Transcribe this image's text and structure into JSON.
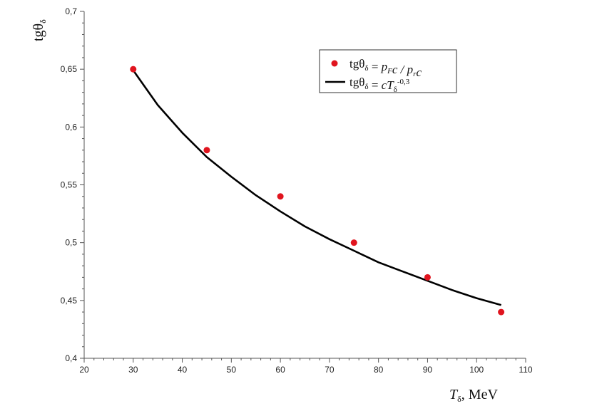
{
  "chart_data": {
    "type": "scatter",
    "title": "",
    "xlabel": {
      "main": "T",
      "sub": "δ",
      "rest": ", MeV"
    },
    "ylabel": {
      "main": "tgθ",
      "sub": "δ"
    },
    "xlim": [
      20,
      110
    ],
    "ylim": [
      0.4,
      0.7
    ],
    "x_ticks": [
      20,
      30,
      40,
      50,
      60,
      70,
      80,
      90,
      100,
      110
    ],
    "x_tick_labels": [
      "20",
      "30",
      "40",
      "50",
      "60",
      "70",
      "80",
      "90",
      "100",
      "110"
    ],
    "y_ticks": [
      0.4,
      0.45,
      0.5,
      0.55,
      0.6,
      0.65,
      0.7
    ],
    "y_tick_labels": [
      "0,4",
      "0,45",
      "0,5",
      "0,55",
      "0,6",
      "0,65",
      "0,7"
    ],
    "grid": false,
    "legend_position": "top-right",
    "series": [
      {
        "name": "tgθδ = pFc / prc",
        "kind": "points",
        "color": "#e0141e",
        "x": [
          30,
          45,
          60,
          75,
          90,
          105
        ],
        "y": [
          0.65,
          0.58,
          0.54,
          0.5,
          0.47,
          0.44
        ]
      },
      {
        "name": "tgθδ = cTδ^-0,3",
        "kind": "line",
        "color": "#000000",
        "x": [
          30,
          35,
          40,
          45,
          50,
          55,
          60,
          65,
          70,
          75,
          80,
          85,
          90,
          95,
          100,
          105
        ],
        "y": [
          0.649,
          0.619,
          0.595,
          0.574,
          0.557,
          0.541,
          0.527,
          0.514,
          0.503,
          0.493,
          0.483,
          0.475,
          0.467,
          0.459,
          0.452,
          0.446
        ]
      }
    ],
    "legend": [
      {
        "marker": "point",
        "parts": [
          {
            "t": "tgθ",
            "s": "n"
          },
          {
            "t": "δ",
            "s": "sub"
          },
          {
            "t": " = ",
            "s": "n"
          },
          {
            "t": "p",
            "s": "i"
          },
          {
            "t": "F",
            "s": "subi"
          },
          {
            "t": "c / ",
            "s": "i"
          },
          {
            "t": "p",
            "s": "i"
          },
          {
            "t": "r",
            "s": "subi"
          },
          {
            "t": "c",
            "s": "i"
          }
        ]
      },
      {
        "marker": "line",
        "parts": [
          {
            "t": "tgθ",
            "s": "n"
          },
          {
            "t": "δ",
            "s": "sub"
          },
          {
            "t": " = ",
            "s": "n"
          },
          {
            "t": "cT",
            "s": "i"
          },
          {
            "t": "δ",
            "s": "sub"
          },
          {
            "t": "-0,3",
            "s": "sup"
          }
        ]
      }
    ]
  }
}
